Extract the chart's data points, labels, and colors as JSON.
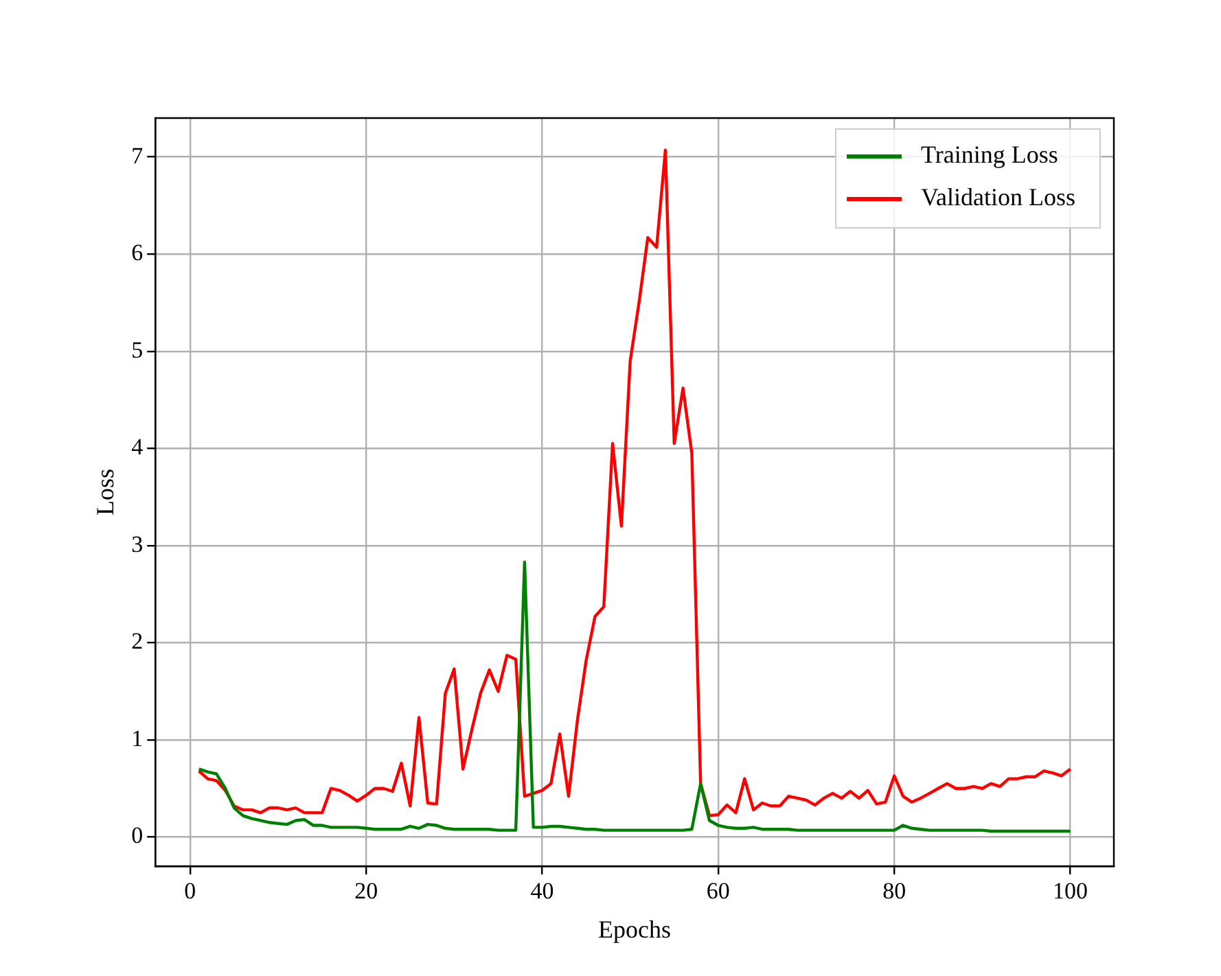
{
  "chart_data": {
    "type": "line",
    "xlabel": "Epochs",
    "ylabel": "Loss",
    "x": [
      1,
      2,
      3,
      4,
      5,
      6,
      7,
      8,
      9,
      10,
      11,
      12,
      13,
      14,
      15,
      16,
      17,
      18,
      19,
      20,
      21,
      22,
      23,
      24,
      25,
      26,
      27,
      28,
      29,
      30,
      31,
      32,
      33,
      34,
      35,
      36,
      37,
      38,
      39,
      40,
      41,
      42,
      43,
      44,
      45,
      46,
      47,
      48,
      49,
      50,
      51,
      52,
      53,
      54,
      55,
      56,
      57,
      58,
      59,
      60,
      61,
      62,
      63,
      64,
      65,
      66,
      67,
      68,
      69,
      70,
      71,
      72,
      73,
      74,
      75,
      76,
      77,
      78,
      79,
      80,
      81,
      82,
      83,
      84,
      85,
      86,
      87,
      88,
      89,
      90,
      91,
      92,
      93,
      94,
      95,
      96,
      97,
      98,
      99,
      100
    ],
    "series": [
      {
        "name": "Training Loss",
        "color": "#008000",
        "values": [
          0.7,
          0.67,
          0.65,
          0.5,
          0.3,
          0.22,
          0.19,
          0.17,
          0.15,
          0.14,
          0.13,
          0.17,
          0.18,
          0.12,
          0.12,
          0.1,
          0.1,
          0.1,
          0.1,
          0.09,
          0.08,
          0.08,
          0.08,
          0.08,
          0.11,
          0.09,
          0.13,
          0.12,
          0.09,
          0.08,
          0.08,
          0.08,
          0.08,
          0.08,
          0.07,
          0.07,
          0.07,
          2.83,
          0.1,
          0.1,
          0.11,
          0.11,
          0.1,
          0.09,
          0.08,
          0.08,
          0.07,
          0.07,
          0.07,
          0.07,
          0.07,
          0.07,
          0.07,
          0.07,
          0.07,
          0.07,
          0.08,
          0.55,
          0.17,
          0.12,
          0.1,
          0.09,
          0.09,
          0.1,
          0.08,
          0.08,
          0.08,
          0.08,
          0.07,
          0.07,
          0.07,
          0.07,
          0.07,
          0.07,
          0.07,
          0.07,
          0.07,
          0.07,
          0.07,
          0.07,
          0.12,
          0.09,
          0.08,
          0.07,
          0.07,
          0.07,
          0.07,
          0.07,
          0.07,
          0.07,
          0.06,
          0.06,
          0.06,
          0.06,
          0.06,
          0.06,
          0.06,
          0.06,
          0.06,
          0.06
        ]
      },
      {
        "name": "Validation Loss",
        "color": "#ff0000",
        "values": [
          0.68,
          0.6,
          0.58,
          0.48,
          0.32,
          0.28,
          0.28,
          0.25,
          0.3,
          0.3,
          0.28,
          0.3,
          0.25,
          0.25,
          0.25,
          0.5,
          0.48,
          0.43,
          0.37,
          0.43,
          0.5,
          0.5,
          0.47,
          0.76,
          0.32,
          1.23,
          0.35,
          0.34,
          1.48,
          1.73,
          0.7,
          1.1,
          1.48,
          1.72,
          1.5,
          1.87,
          1.83,
          0.42,
          0.45,
          0.48,
          0.55,
          1.06,
          0.42,
          1.2,
          1.82,
          2.27,
          2.37,
          4.05,
          3.2,
          4.9,
          5.5,
          6.17,
          6.07,
          7.07,
          4.05,
          4.62,
          3.95,
          0.55,
          0.22,
          0.23,
          0.33,
          0.25,
          0.6,
          0.28,
          0.35,
          0.32,
          0.32,
          0.42,
          0.4,
          0.38,
          0.33,
          0.4,
          0.45,
          0.4,
          0.47,
          0.4,
          0.48,
          0.34,
          0.36,
          0.63,
          0.42,
          0.36,
          0.4,
          0.45,
          0.5,
          0.55,
          0.5,
          0.5,
          0.52,
          0.5,
          0.55,
          0.52,
          0.6,
          0.6,
          0.62,
          0.62,
          0.68,
          0.66,
          0.63,
          0.7
        ]
      }
    ],
    "xlim": [
      -3.95,
      104.95
    ],
    "xticks": [
      0,
      20,
      40,
      60,
      80,
      100
    ],
    "ylim": [
      -0.3,
      7.4
    ],
    "yticks": [
      0,
      1,
      2,
      3,
      4,
      5,
      6,
      7
    ],
    "grid": true,
    "legend": "top right",
    "marker": "none",
    "line_style": "solid"
  }
}
